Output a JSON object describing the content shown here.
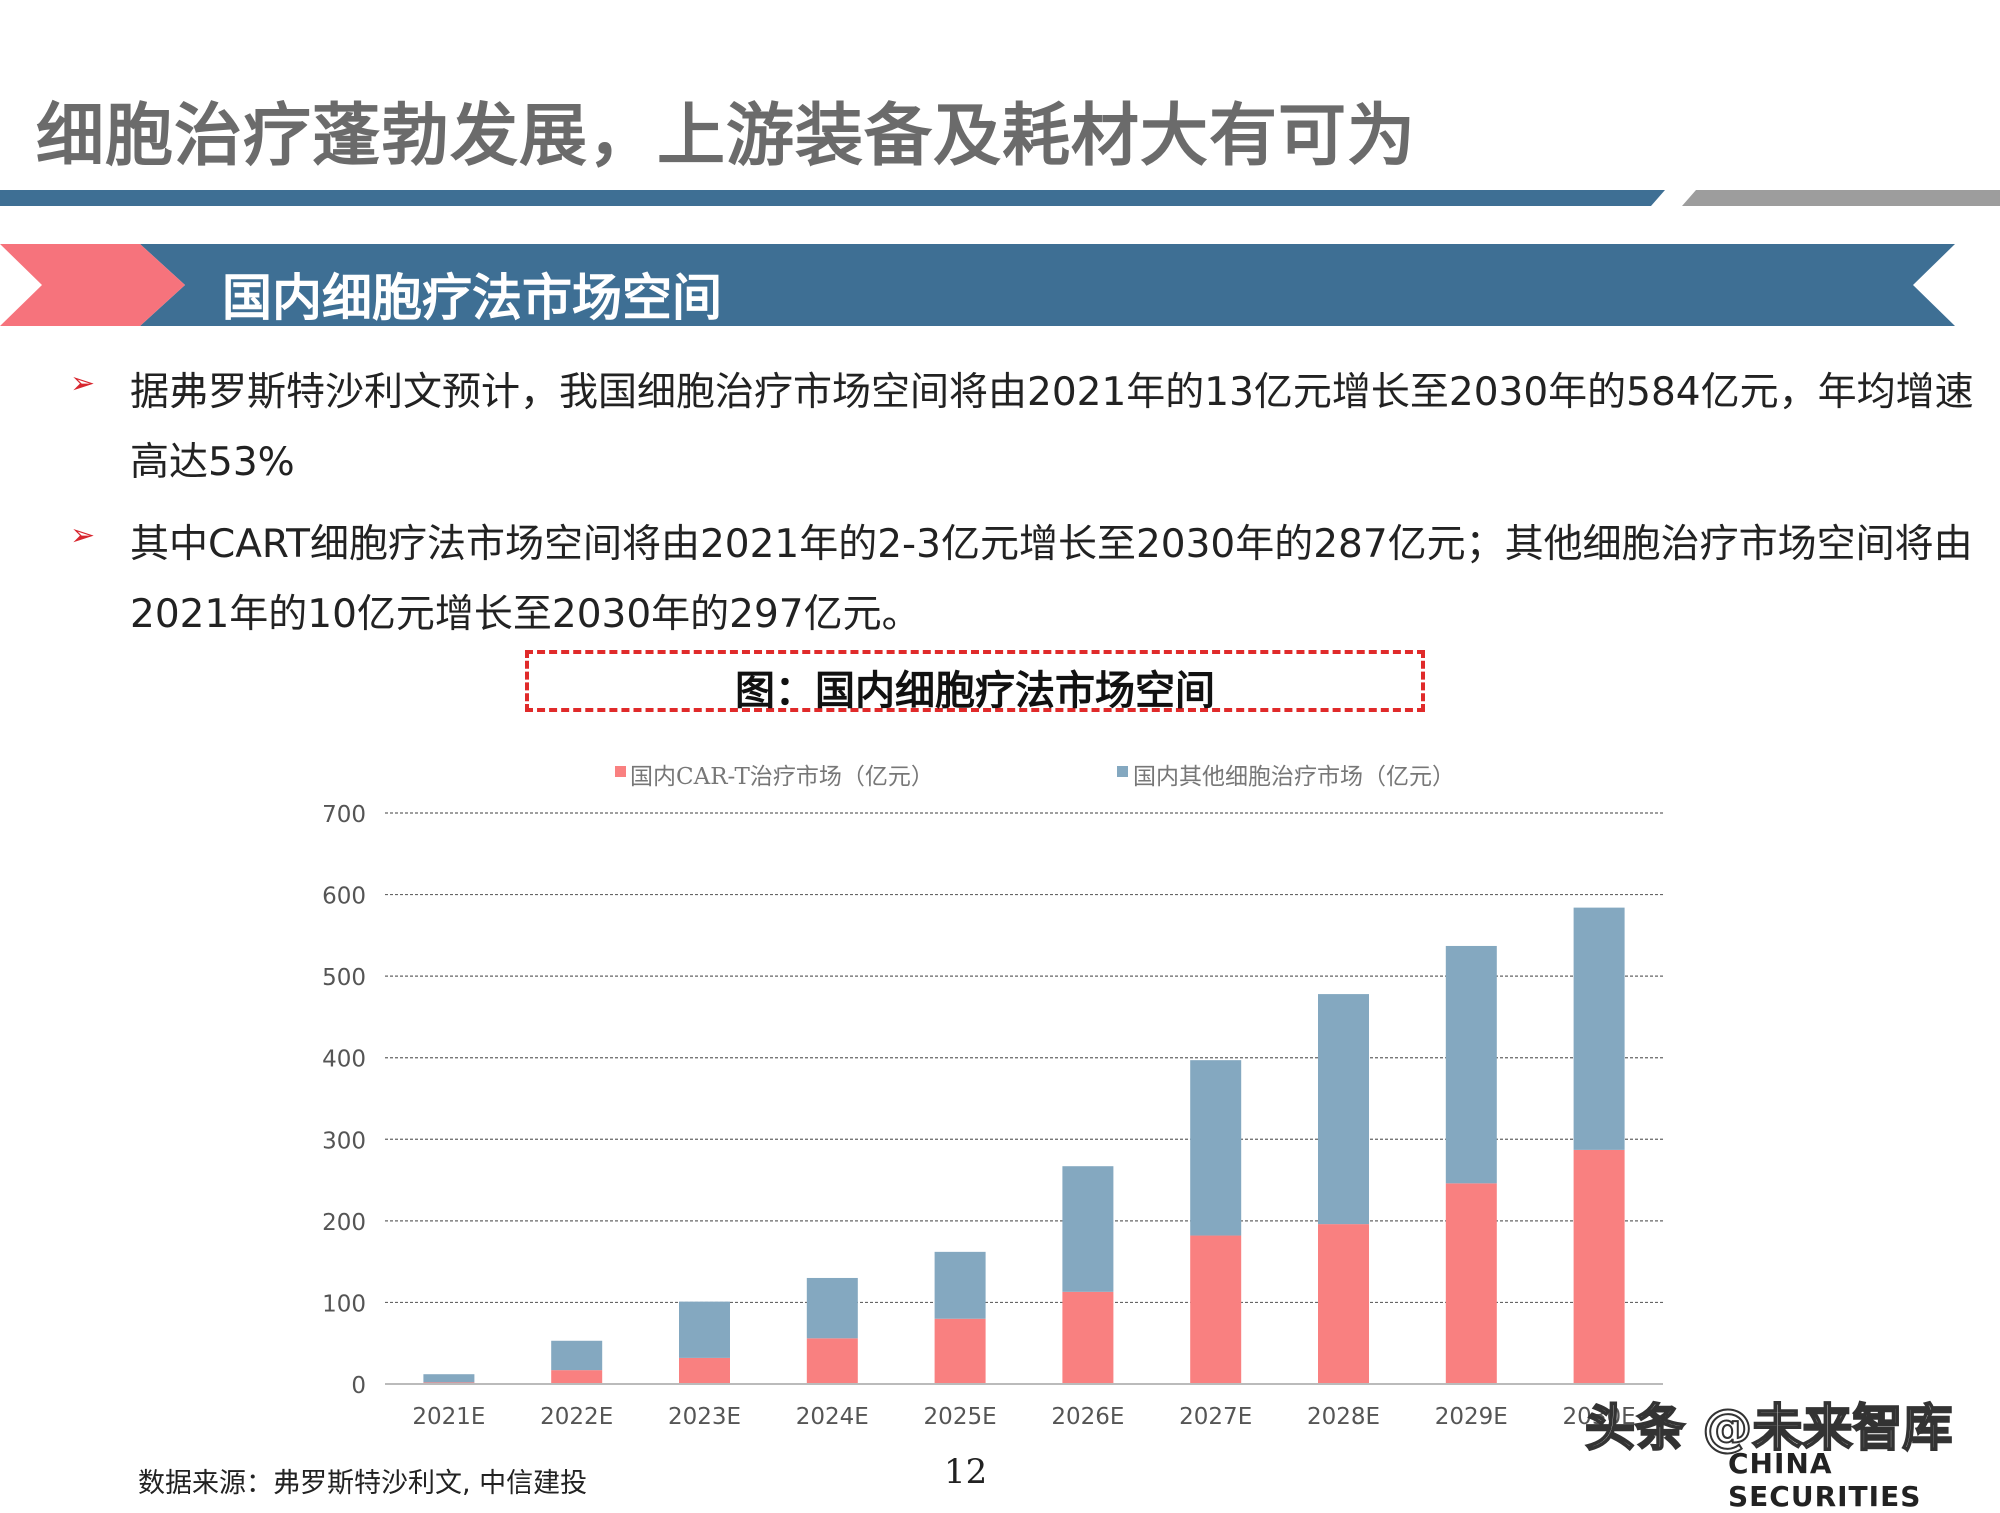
{
  "page": {
    "title": "细胞治疗蓬勃发展，上游装备及耗材大有可为",
    "section_title": "国内细胞疗法市场空间",
    "bullets": [
      "据弗罗斯特沙利文预计，我国细胞治疗市场空间将由2021年的13亿元增长至2030年的584亿元，年均增速高达53%",
      "其中CART细胞疗法市场空间将由2021年的2-3亿元增长至2030年的287亿元；其他细胞治疗市场空间将由2021年的10亿元增长至2030年的297亿元。"
    ],
    "figure_title": "图：国内细胞疗法市场空间",
    "source": "数据来源：弗罗斯特沙利文, 中信建投",
    "page_number": "12",
    "watermark": "头条 @未来智库",
    "brand": "CHINA SECURITIES"
  },
  "colors": {
    "car_t": "#f98080",
    "other": "#84a8c0",
    "title_gray": "#6b6b6b",
    "band_blue": "#3e6f94",
    "accent_red": "#d8262e"
  },
  "chart_data": {
    "type": "bar",
    "stacked": true,
    "categories": [
      "2021E",
      "2022E",
      "2023E",
      "2024E",
      "2025E",
      "2026E",
      "2027E",
      "2028E",
      "2029E",
      "2030E"
    ],
    "series": [
      {
        "name": "国内CAR-T治疗市场（亿元）",
        "values": [
          2,
          17,
          32,
          56,
          80,
          113,
          182,
          196,
          246,
          287
        ]
      },
      {
        "name": "国内其他细胞治疗市场（亿元）",
        "values": [
          10,
          36,
          69,
          74,
          82,
          154,
          215,
          282,
          291,
          297
        ]
      }
    ],
    "y_ticks": [
      0,
      100,
      200,
      300,
      400,
      500,
      600,
      700
    ],
    "ylim": [
      0,
      700
    ],
    "grid": "dashed horizontal",
    "legend_position": "top"
  }
}
